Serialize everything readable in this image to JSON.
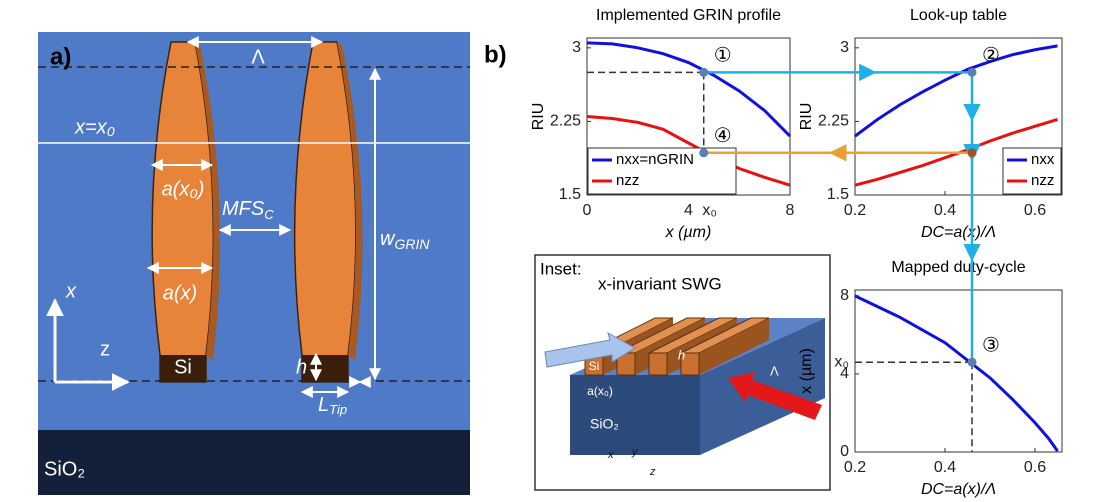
{
  "panel_a": {
    "label": "a)",
    "lambda": "Λ",
    "x_eq_x0": "x=x₀",
    "a_x0": "a(x₀)",
    "mfs": {
      "text": "MFS",
      "sub": "C"
    },
    "w_grin": {
      "text": "w",
      "sub": "GRIN"
    },
    "a_x": "a(x)",
    "axis_x": "x",
    "axis_z": "z",
    "si": "Si",
    "h": "h",
    "l_tip": {
      "text": "L",
      "sub": "Tip"
    },
    "sio2": "SiO₂"
  },
  "panel_b_label": "b)",
  "inset": {
    "label": "Inset:",
    "title": "x-invariant SWG",
    "si": "Si",
    "h": "h",
    "a_x0": "a(x₀)",
    "lambda": "Λ",
    "sio2": "SiO₂",
    "axis_x": "x",
    "axis_y": "y",
    "axis_z": "z"
  },
  "chart_data": [
    {
      "type": "line",
      "title": "Implemented GRIN profile",
      "xlabel": "x (µm)",
      "ylabel": "RIU",
      "x": [
        0,
        1,
        2,
        3,
        4,
        5,
        6,
        7,
        8
      ],
      "series": [
        {
          "name": "nxx=nGRIN",
          "color": "#1010e0",
          "values": [
            3.05,
            3.04,
            3.0,
            2.94,
            2.85,
            2.72,
            2.56,
            2.36,
            2.1
          ]
        },
        {
          "name": "nzz",
          "color": "#e81010",
          "values": [
            2.3,
            2.28,
            2.24,
            2.17,
            2.03,
            1.89,
            1.77,
            1.68,
            1.6
          ]
        }
      ],
      "xlim": [
        0,
        8
      ],
      "ylim": [
        1.5,
        3.1
      ],
      "xticks": [
        0,
        4,
        {
          "value": 4.6,
          "label": "x₀"
        },
        8
      ],
      "yticks": [
        1.5,
        2.25,
        3
      ],
      "legend": "lower left",
      "annotations": [
        {
          "label": "①",
          "x": 4.6,
          "y": 2.75
        },
        {
          "label": "④",
          "x": 4.6,
          "y": 1.93
        }
      ]
    },
    {
      "type": "line",
      "title": "Look-up table",
      "xlabel": "DC=a(x)/Λ",
      "ylabel": "RIU",
      "x": [
        0.2,
        0.25,
        0.3,
        0.35,
        0.4,
        0.45,
        0.5,
        0.55,
        0.6,
        0.65
      ],
      "series": [
        {
          "name": "nxx",
          "color": "#1010e0",
          "values": [
            2.1,
            2.27,
            2.42,
            2.55,
            2.67,
            2.78,
            2.86,
            2.93,
            2.98,
            3.02
          ]
        },
        {
          "name": "nzz",
          "color": "#e81010",
          "values": [
            1.6,
            1.66,
            1.73,
            1.8,
            1.88,
            1.96,
            2.05,
            2.13,
            2.2,
            2.27
          ]
        }
      ],
      "xlim": [
        0.2,
        0.66
      ],
      "ylim": [
        1.5,
        3.1
      ],
      "xticks": [
        0.2,
        0.4,
        0.6
      ],
      "yticks": [
        1.5,
        2.25,
        3
      ],
      "legend": "lower right",
      "annotations": [
        {
          "label": "②",
          "x": 0.46,
          "y": 2.75
        },
        {
          "x": 0.46,
          "y": 1.93
        }
      ]
    },
    {
      "type": "line",
      "title": "Mapped duty-cycle",
      "xlabel": "DC=a(x)/Λ",
      "ylabel": "x (µm)",
      "x": [
        0.2,
        0.3,
        0.4,
        0.5,
        0.55,
        0.6,
        0.63,
        0.65
      ],
      "series": [
        {
          "color": "#1010e0",
          "values": [
            8,
            6.9,
            5.6,
            3.8,
            2.7,
            1.5,
            0.7,
            0.05
          ]
        }
      ],
      "xlim": [
        0.2,
        0.66
      ],
      "ylim": [
        0,
        8.3
      ],
      "xticks": [
        0.2,
        0.4,
        0.6
      ],
      "yticks": [
        0,
        4,
        {
          "value": 4.6,
          "label": "x₀"
        },
        8
      ],
      "annotations": [
        {
          "label": "③",
          "x": 0.46,
          "y": 4.6
        }
      ]
    }
  ]
}
